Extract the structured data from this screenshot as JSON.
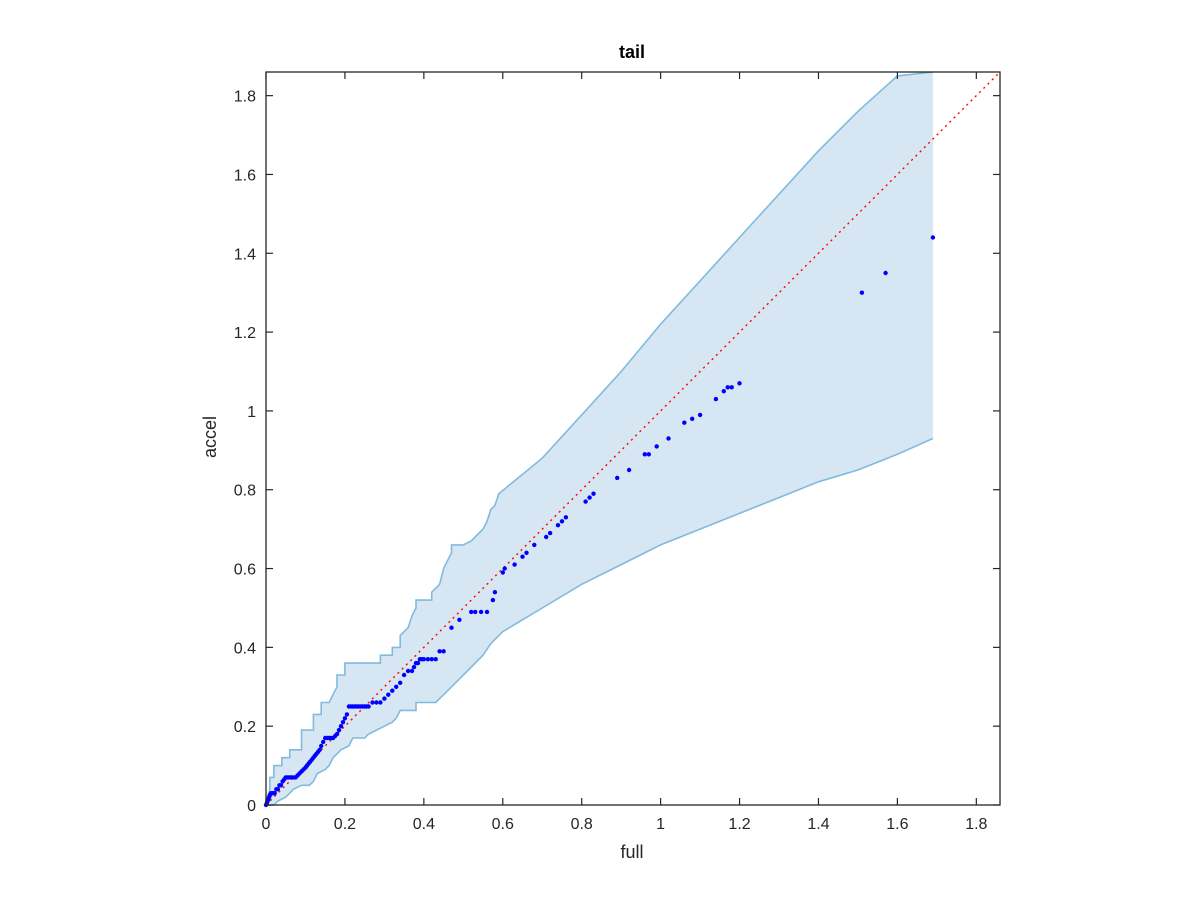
{
  "chart_data": {
    "type": "scatter",
    "title": "tail",
    "xlabel": "full",
    "ylabel": "accel",
    "xlim": [
      0,
      1.86
    ],
    "ylim": [
      0,
      1.86
    ],
    "x_ticks": [
      0,
      0.2,
      0.4,
      0.6,
      0.8,
      1,
      1.2,
      1.4,
      1.6,
      1.8
    ],
    "y_ticks": [
      0,
      0.2,
      0.4,
      0.6,
      0.8,
      1,
      1.2,
      1.4,
      1.6,
      1.8
    ],
    "x_tick_labels": [
      "0",
      "0.2",
      "0.4",
      "0.6",
      "0.8",
      "1",
      "1.2",
      "1.4",
      "1.6",
      "1.8"
    ],
    "y_tick_labels": [
      "0",
      "0.2",
      "0.4",
      "0.6",
      "0.8",
      "1",
      "1.2",
      "1.4",
      "1.6",
      "1.8"
    ],
    "grid": false,
    "colors": {
      "points": "#0000ff",
      "reference_line": "#ff0000",
      "band_fill": "#d6e7f3",
      "band_edge": "#80bade",
      "axes": "#262626"
    },
    "reference_line": {
      "x": [
        0,
        1.86
      ],
      "y": [
        0,
        1.86
      ]
    },
    "confidence_band": {
      "upper": [
        [
          0,
          0.01
        ],
        [
          0.01,
          0.04
        ],
        [
          0.01,
          0.07
        ],
        [
          0.02,
          0.07
        ],
        [
          0.02,
          0.1
        ],
        [
          0.04,
          0.1
        ],
        [
          0.04,
          0.12
        ],
        [
          0.06,
          0.12
        ],
        [
          0.06,
          0.14
        ],
        [
          0.09,
          0.14
        ],
        [
          0.09,
          0.19
        ],
        [
          0.12,
          0.19
        ],
        [
          0.12,
          0.23
        ],
        [
          0.14,
          0.23
        ],
        [
          0.14,
          0.26
        ],
        [
          0.16,
          0.26
        ],
        [
          0.18,
          0.3
        ],
        [
          0.18,
          0.33
        ],
        [
          0.2,
          0.33
        ],
        [
          0.2,
          0.36
        ],
        [
          0.29,
          0.36
        ],
        [
          0.29,
          0.38
        ],
        [
          0.32,
          0.38
        ],
        [
          0.32,
          0.4
        ],
        [
          0.34,
          0.4
        ],
        [
          0.34,
          0.43
        ],
        [
          0.36,
          0.45
        ],
        [
          0.37,
          0.48
        ],
        [
          0.38,
          0.5
        ],
        [
          0.38,
          0.52
        ],
        [
          0.42,
          0.52
        ],
        [
          0.42,
          0.54
        ],
        [
          0.44,
          0.56
        ],
        [
          0.45,
          0.6
        ],
        [
          0.46,
          0.62
        ],
        [
          0.47,
          0.64
        ],
        [
          0.47,
          0.66
        ],
        [
          0.5,
          0.66
        ],
        [
          0.52,
          0.67
        ],
        [
          0.53,
          0.68
        ],
        [
          0.55,
          0.7
        ],
        [
          0.56,
          0.72
        ],
        [
          0.57,
          0.75
        ],
        [
          0.58,
          0.76
        ],
        [
          0.59,
          0.79
        ],
        [
          0.7,
          0.88
        ],
        [
          0.8,
          0.99
        ],
        [
          0.9,
          1.1
        ],
        [
          1,
          1.22
        ],
        [
          1.1,
          1.33
        ],
        [
          1.2,
          1.44
        ],
        [
          1.3,
          1.55
        ],
        [
          1.4,
          1.66
        ],
        [
          1.5,
          1.76
        ],
        [
          1.6,
          1.85
        ],
        [
          1.69,
          1.86
        ]
      ],
      "lower": [
        [
          1.69,
          0.93
        ],
        [
          1.6,
          0.89
        ],
        [
          1.5,
          0.85
        ],
        [
          1.4,
          0.82
        ],
        [
          1.3,
          0.78
        ],
        [
          1.2,
          0.74
        ],
        [
          1.1,
          0.7
        ],
        [
          1,
          0.66
        ],
        [
          0.9,
          0.61
        ],
        [
          0.8,
          0.56
        ],
        [
          0.7,
          0.5
        ],
        [
          0.65,
          0.47
        ],
        [
          0.6,
          0.44
        ],
        [
          0.58,
          0.42
        ],
        [
          0.57,
          0.41
        ],
        [
          0.55,
          0.38
        ],
        [
          0.51,
          0.34
        ],
        [
          0.47,
          0.3
        ],
        [
          0.45,
          0.28
        ],
        [
          0.44,
          0.27
        ],
        [
          0.43,
          0.26
        ],
        [
          0.38,
          0.26
        ],
        [
          0.38,
          0.24
        ],
        [
          0.34,
          0.24
        ],
        [
          0.33,
          0.22
        ],
        [
          0.32,
          0.21
        ],
        [
          0.28,
          0.19
        ],
        [
          0.26,
          0.18
        ],
        [
          0.25,
          0.17
        ],
        [
          0.22,
          0.17
        ],
        [
          0.21,
          0.15
        ],
        [
          0.19,
          0.14
        ],
        [
          0.17,
          0.12
        ],
        [
          0.16,
          0.1
        ],
        [
          0.15,
          0.09
        ],
        [
          0.13,
          0.08
        ],
        [
          0.12,
          0.06
        ],
        [
          0.11,
          0.05
        ],
        [
          0.09,
          0.05
        ],
        [
          0.07,
          0.04
        ],
        [
          0.06,
          0.03
        ],
        [
          0.05,
          0.02
        ],
        [
          0.03,
          0.01
        ],
        [
          0.02,
          0.0
        ],
        [
          0.0,
          0.0
        ]
      ]
    },
    "series": [
      {
        "x": [
          0.0,
          0.002,
          0.004,
          0.006,
          0.008,
          0.01,
          0.013,
          0.016,
          0.019,
          0.022,
          0.026,
          0.03,
          0.034,
          0.038,
          0.042,
          0.046,
          0.05,
          0.054,
          0.058,
          0.062,
          0.066,
          0.07,
          0.075,
          0.08,
          0.085,
          0.09,
          0.095,
          0.1,
          0.104,
          0.108,
          0.112,
          0.116,
          0.12,
          0.124,
          0.128,
          0.132,
          0.136,
          0.14,
          0.145,
          0.15,
          0.155,
          0.16,
          0.165,
          0.17,
          0.175,
          0.18,
          0.185,
          0.19,
          0.195,
          0.2,
          0.205,
          0.21,
          0.215,
          0.22,
          0.225,
          0.23,
          0.235,
          0.24,
          0.245,
          0.25,
          0.255,
          0.26,
          0.27,
          0.28,
          0.29,
          0.3,
          0.31,
          0.32,
          0.33,
          0.34,
          0.35,
          0.36,
          0.37,
          0.375,
          0.38,
          0.385,
          0.39,
          0.395,
          0.4,
          0.41,
          0.42,
          0.43,
          0.44,
          0.45,
          0.47,
          0.49,
          0.52,
          0.53,
          0.545,
          0.56,
          0.575,
          0.58,
          0.6,
          0.605,
          0.63,
          0.65,
          0.66,
          0.68,
          0.71,
          0.72,
          0.74,
          0.75,
          0.76,
          0.81,
          0.82,
          0.83,
          0.89,
          0.92,
          0.96,
          0.97,
          0.99,
          1.02,
          1.06,
          1.08,
          1.1,
          1.14,
          1.16,
          1.17,
          1.18,
          1.2,
          1.51,
          1.57,
          1.69
        ],
        "y": [
          0.0,
          0.005,
          0.01,
          0.015,
          0.02,
          0.025,
          0.03,
          0.03,
          0.03,
          0.03,
          0.04,
          0.04,
          0.05,
          0.05,
          0.06,
          0.065,
          0.07,
          0.07,
          0.07,
          0.07,
          0.07,
          0.07,
          0.07,
          0.075,
          0.08,
          0.085,
          0.09,
          0.095,
          0.1,
          0.105,
          0.11,
          0.115,
          0.12,
          0.125,
          0.13,
          0.135,
          0.14,
          0.15,
          0.16,
          0.17,
          0.17,
          0.17,
          0.17,
          0.17,
          0.175,
          0.18,
          0.19,
          0.2,
          0.21,
          0.22,
          0.23,
          0.25,
          0.25,
          0.25,
          0.25,
          0.25,
          0.25,
          0.25,
          0.25,
          0.25,
          0.25,
          0.25,
          0.26,
          0.26,
          0.26,
          0.27,
          0.28,
          0.29,
          0.3,
          0.31,
          0.33,
          0.34,
          0.34,
          0.35,
          0.36,
          0.36,
          0.37,
          0.37,
          0.37,
          0.37,
          0.37,
          0.37,
          0.39,
          0.39,
          0.45,
          0.47,
          0.49,
          0.49,
          0.49,
          0.49,
          0.52,
          0.54,
          0.59,
          0.6,
          0.61,
          0.63,
          0.64,
          0.66,
          0.68,
          0.69,
          0.71,
          0.72,
          0.73,
          0.77,
          0.78,
          0.79,
          0.83,
          0.85,
          0.89,
          0.89,
          0.91,
          0.93,
          0.97,
          0.98,
          0.99,
          1.03,
          1.05,
          1.06,
          1.06,
          1.07,
          1.3,
          1.35,
          1.44
        ]
      }
    ]
  }
}
